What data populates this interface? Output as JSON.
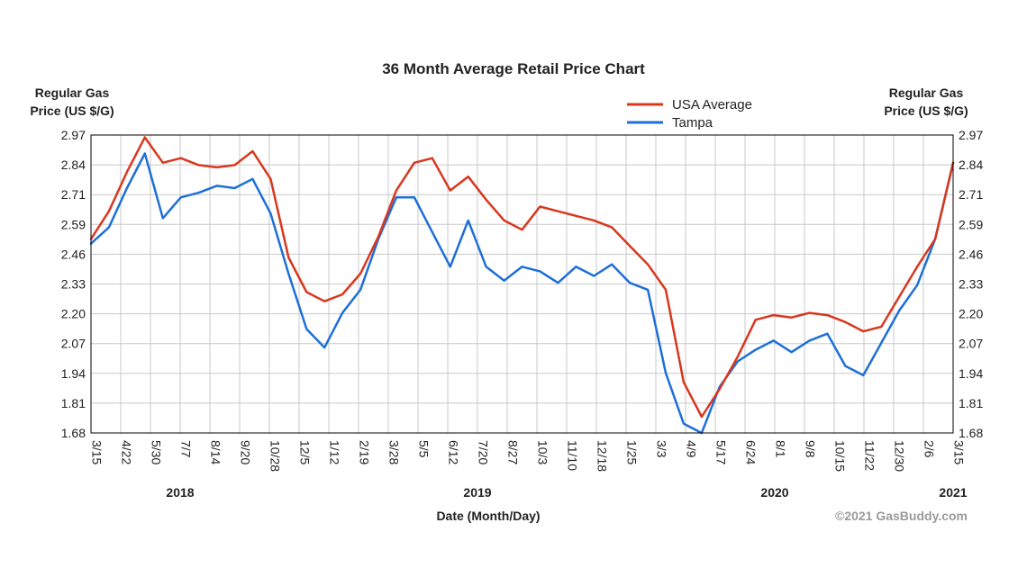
{
  "chart_data": {
    "type": "line",
    "title": "36 Month Average Retail Price Chart",
    "ylabel_left": [
      "Regular Gas",
      "Price (US $/G)"
    ],
    "ylabel_right": [
      "Regular Gas",
      "Price (US $/G)"
    ],
    "xlabel": "Date (Month/Day)",
    "copyright": "©2021 GasBuddy.com",
    "grid": true,
    "legend_position": "top-right",
    "ylim": [
      1.68,
      2.97
    ],
    "yticks": [
      "2.97",
      "2.84",
      "2.71",
      "2.59",
      "2.46",
      "2.33",
      "2.20",
      "2.07",
      "1.94",
      "1.81",
      "1.68"
    ],
    "xticks": [
      "3/15",
      "4/22",
      "5/30",
      "7/7",
      "8/14",
      "9/20",
      "10/28",
      "12/5",
      "1/12",
      "2/19",
      "3/28",
      "5/5",
      "6/12",
      "7/20",
      "8/27",
      "10/3",
      "11/10",
      "12/18",
      "1/25",
      "3/3",
      "4/9",
      "5/17",
      "6/24",
      "8/1",
      "9/8",
      "10/15",
      "11/22",
      "12/30",
      "2/6",
      "3/15"
    ],
    "years": [
      "2018",
      "2019",
      "2020",
      "2021"
    ],
    "colors": {
      "usa": "#d9371e",
      "tampa": "#1e6fd9",
      "grid": "#c8c8c8",
      "frame": "#000000"
    },
    "series": [
      {
        "name": "USA Average",
        "values": [
          2.52,
          2.64,
          2.81,
          2.96,
          2.85,
          2.87,
          2.84,
          2.83,
          2.84,
          2.9,
          2.78,
          2.44,
          2.29,
          2.25,
          2.28,
          2.37,
          2.53,
          2.73,
          2.85,
          2.87,
          2.73,
          2.79,
          2.69,
          2.6,
          2.56,
          2.66,
          2.64,
          2.62,
          2.6,
          2.57,
          2.49,
          2.41,
          2.3,
          1.9,
          1.75,
          1.87,
          2.01,
          2.17,
          2.19,
          2.18,
          2.2,
          2.19,
          2.16,
          2.12,
          2.14,
          2.27,
          2.4,
          2.52,
          2.85
        ]
      },
      {
        "name": "Tampa",
        "values": [
          2.5,
          2.57,
          2.74,
          2.89,
          2.61,
          2.7,
          2.72,
          2.75,
          2.74,
          2.78,
          2.63,
          2.37,
          2.13,
          2.05,
          2.2,
          2.3,
          2.52,
          2.7,
          2.7,
          2.55,
          2.4,
          2.6,
          2.4,
          2.34,
          2.4,
          2.38,
          2.33,
          2.4,
          2.36,
          2.41,
          2.33,
          2.3,
          1.94,
          1.72,
          1.68,
          1.88,
          1.99,
          2.04,
          2.08,
          2.03,
          2.08,
          2.11,
          1.97,
          1.93,
          2.07,
          2.21,
          2.32,
          2.52,
          2.85
        ]
      }
    ]
  }
}
